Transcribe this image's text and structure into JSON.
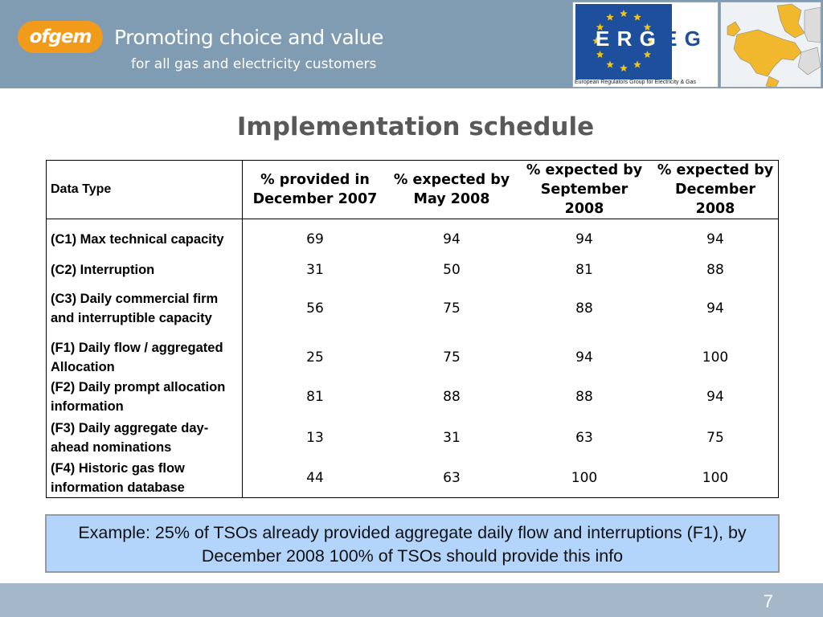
{
  "header": {
    "logo_text": "ofgem",
    "tagline_line1": "Promoting choice and value",
    "tagline_line2": "for all gas and electricity customers",
    "ergeg_letters": [
      "E",
      "R",
      "G",
      "E",
      "G"
    ],
    "ergeg_caption": "European Regulators Group for Electricity & Gas",
    "colors": {
      "band": "#7f9cb3",
      "logo": "#f29a1a",
      "ergeg_blue": "#1d4f9c",
      "ergeg_gold": "#f0c419"
    }
  },
  "title": "Implementation schedule",
  "table": {
    "headers": [
      "Data Type",
      "% provided in December 2007",
      "% expected by May 2008",
      "% expected by September 2008",
      "% expected by December 2008"
    ],
    "rows": [
      {
        "type": " (C1) Max technical capacity",
        "values": [
          "69",
          "94",
          "94",
          "94"
        ]
      },
      {
        "type": "(C2) Interruption",
        "values": [
          "31",
          "50",
          "81",
          "88"
        ]
      },
      {
        "type": "(C3) Daily commercial firm and interruptible capacity",
        "values": [
          "56",
          "75",
          "88",
          "94"
        ]
      },
      {
        "type": "(F1) Daily flow / aggregated Allocation",
        "values": [
          "25",
          "75",
          "94",
          "100"
        ]
      },
      {
        "type": "(F2) Daily prompt allocation information",
        "values": [
          "81",
          "88",
          "88",
          "94"
        ]
      },
      {
        "type": "(F3) Daily aggregate day-ahead nominations",
        "values": [
          "13",
          "31",
          "63",
          "75"
        ]
      },
      {
        "type": "(F4) Historic gas flow information database",
        "values": [
          "44",
          "63",
          "100",
          "100"
        ]
      }
    ]
  },
  "note": "Example: 25% of TSOs already provided aggregate daily flow and interruptions (F1), by December 2008 100% of TSOs should provide this info",
  "footer": {
    "page_number": "7",
    "color": "#a4b8c9"
  }
}
